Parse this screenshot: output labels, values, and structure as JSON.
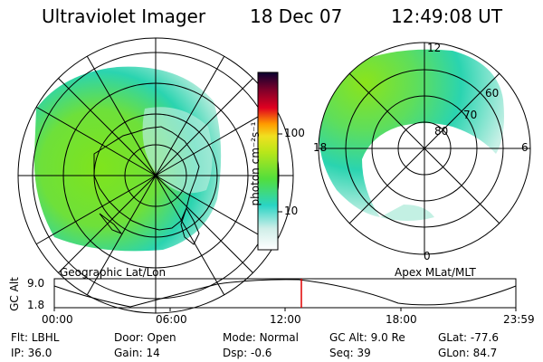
{
  "header": {
    "instrument": "Ultraviolet Imager",
    "date": "18 Dec 07",
    "time": "12:49:08 UT"
  },
  "left_panel": {
    "label": "Geographic Lat/Lon"
  },
  "right_panel": {
    "label": "Apex MLat/MLT",
    "mlt_labels": [
      "12",
      "18",
      "6",
      "0"
    ],
    "mlat_labels": [
      "60",
      "70",
      "80"
    ]
  },
  "colorbar": {
    "unit_label": "photon cm⁻²s⁻¹",
    "ticks": [
      "100",
      "10"
    ]
  },
  "altitude_plot": {
    "y_label": "GC Alt",
    "y_ticks": [
      "9.0",
      "1.8"
    ],
    "x_ticks": [
      "00:00",
      "06:00",
      "12:00",
      "18:00",
      "23:59"
    ],
    "current_time_marker": "12:49"
  },
  "info": {
    "row1": [
      {
        "key": "Flt:",
        "value": "LBHL"
      },
      {
        "key": "Door:",
        "value": "Open"
      },
      {
        "key": "Mode:",
        "value": "Normal"
      },
      {
        "key": "GC Alt:",
        "value": "9.0 Re"
      },
      {
        "key": "GLat:",
        "value": "-77.6"
      }
    ],
    "row2": [
      {
        "key": "IP:",
        "value": "36.0"
      },
      {
        "key": "Gain:",
        "value": "14"
      },
      {
        "key": "Dsp:",
        "value": "-0.6"
      },
      {
        "key": "Seq:",
        "value": "39"
      },
      {
        "key": "GLon:",
        "value": "84.7"
      }
    ]
  },
  "colors": {
    "aurora_green": "#7fe41c",
    "aurora_teal": "#2ad4b0",
    "aurora_light": "#b4ecdc",
    "marker_red": "#e00000"
  }
}
